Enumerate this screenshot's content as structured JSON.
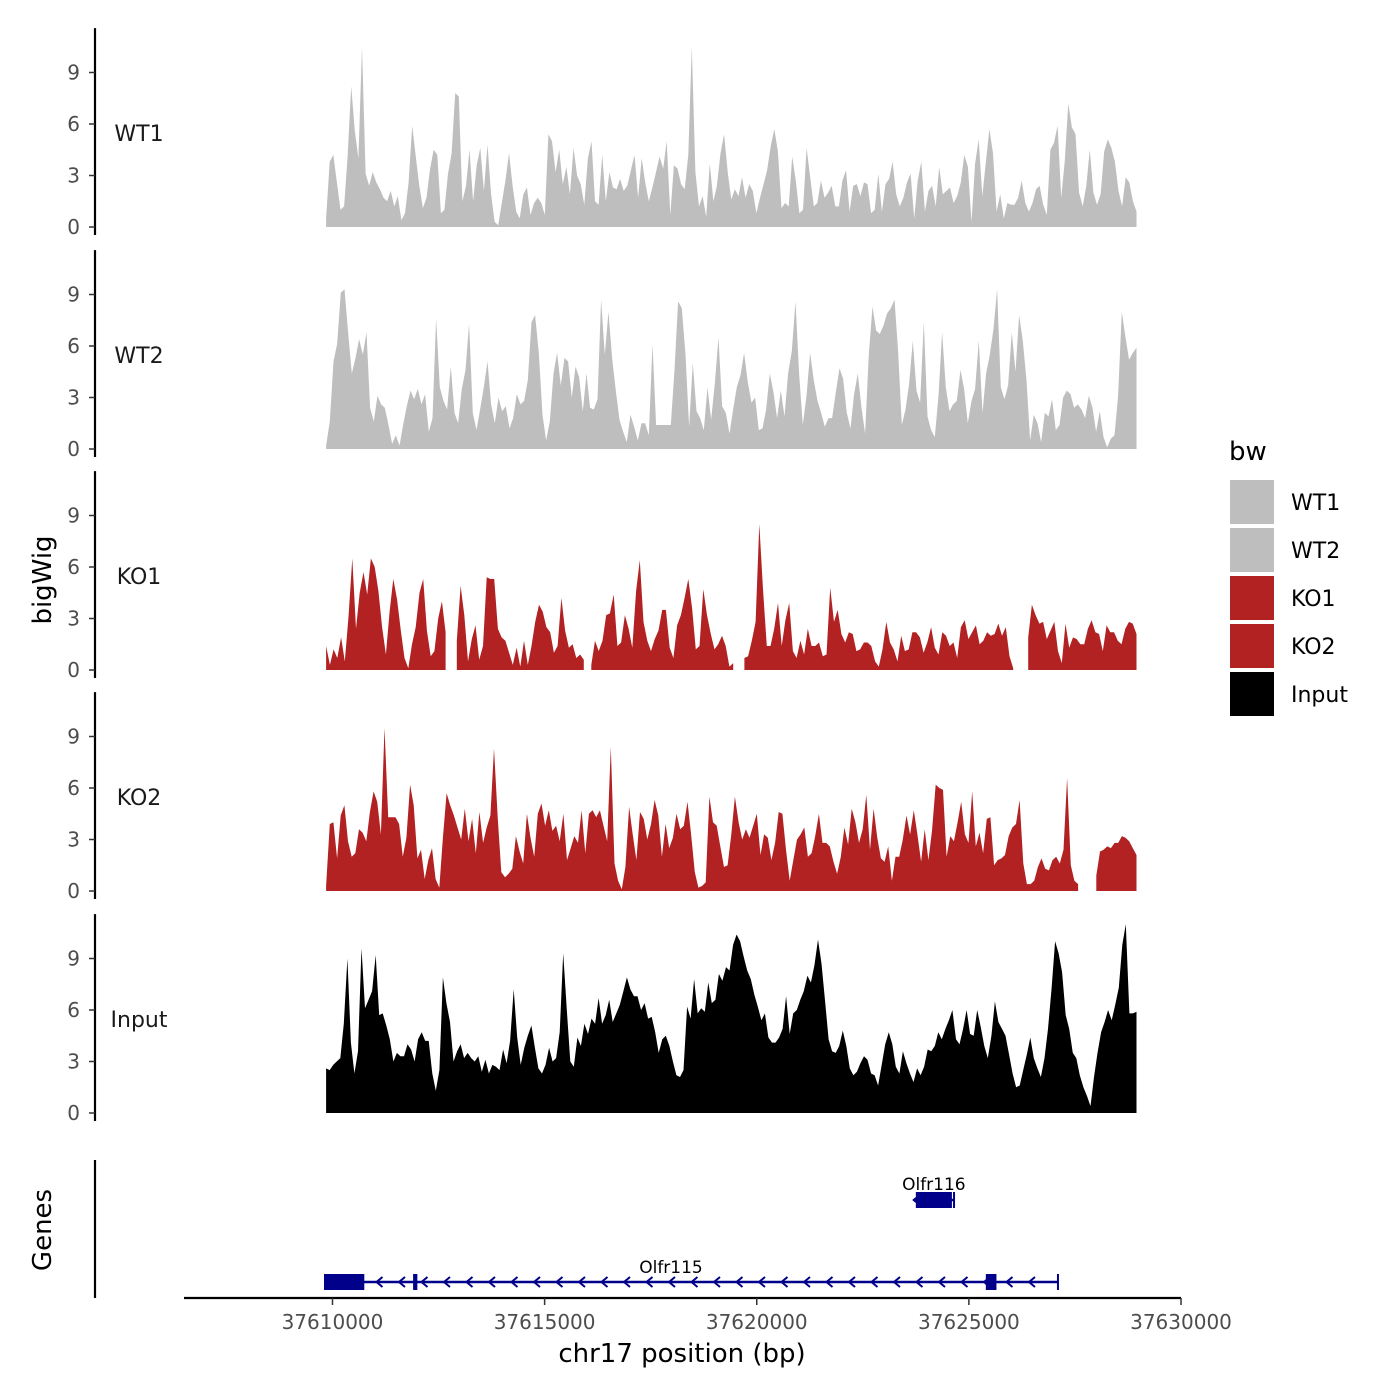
{
  "chart_data": {
    "type": "area",
    "title": "",
    "ylabel": "bigWig",
    "xlabel": "chr17 position (bp)",
    "xlim": [
      37606500,
      37630000
    ],
    "ylim": [
      0,
      11
    ],
    "y_ticks": [
      "0",
      "3",
      "6",
      "9"
    ],
    "x_ticks": [
      "37610000",
      "37615000",
      "37620000",
      "37625000",
      "37630000"
    ],
    "legend": {
      "title": "bw",
      "position": "right",
      "entries": [
        {
          "label": "WT1",
          "color": "#bebebe"
        },
        {
          "label": "WT2",
          "color": "#bebebe"
        },
        {
          "label": "KO1",
          "color": "#b22222"
        },
        {
          "label": "KO2",
          "color": "#b22222"
        },
        {
          "label": "Input",
          "color": "#000000"
        }
      ]
    },
    "series": [
      {
        "name": "WT1",
        "color": "#bebebe",
        "x_start": 37609850,
        "x_end": 37628950,
        "values": [
          0.5,
          3.8,
          4.2,
          2.6,
          1.0,
          1.2,
          4.1,
          8.2,
          5.6,
          4.0,
          10.5,
          3.1,
          2.4,
          3.2,
          2.6,
          2.2,
          1.7,
          1.5,
          2.1,
          1.2,
          1.8,
          0.4,
          0.8,
          2.6,
          5.9,
          4.1,
          2.4,
          1.1,
          1.7,
          3.4,
          4.5,
          4.2,
          0.8,
          1.0,
          3.1,
          4.3,
          7.8,
          7.6,
          1.5,
          2.4,
          4.5,
          1.5,
          3.6,
          4.6,
          2.1,
          4.8,
          1.9,
          0.3,
          0.1,
          1.4,
          2.7,
          4.3,
          2.4,
          0.9,
          0.5,
          1.9,
          2.3,
          0.7,
          1.4,
          1.7,
          1.4,
          0.7,
          5.4,
          5.0,
          3.2,
          4.5,
          2.5,
          3.5,
          1.9,
          4.6,
          3.0,
          2.5,
          1.3,
          4.0,
          5.0,
          1.5,
          1.3,
          4.2,
          1.5,
          3.2,
          2.3,
          2.2,
          2.8,
          2.1,
          2.4,
          3.3,
          4.2,
          1.7,
          4.0,
          2.6,
          1.5,
          2.3,
          3.2,
          4.1,
          3.4,
          5.0,
          0.7,
          3.6,
          3.4,
          2.5,
          2.2,
          4.2,
          10.5,
          3.2,
          1.2,
          1.8,
          0.6,
          3.7,
          1.5,
          2.4,
          4.3,
          5.4,
          3.2,
          1.6,
          2.2,
          1.8,
          2.9,
          1.7,
          2.5,
          2.1,
          0.8,
          1.7,
          2.5,
          3.3,
          4.7,
          5.7,
          4.4,
          1.1,
          1.4,
          1.2,
          4.1,
          2.7,
          0.8,
          1.0,
          4.6,
          2.9,
          1.2,
          1.4,
          2.7,
          1.7,
          2.0,
          2.4,
          1.2,
          1.2,
          2.7,
          3.3,
          0.9,
          2.4,
          2.5,
          1.8,
          2.6,
          2.5,
          0.8,
          1.0,
          3.1,
          0.9,
          2.5,
          2.8,
          3.8,
          1.9,
          1.2,
          1.7,
          2.6,
          3.1,
          0.5,
          2.7,
          3.8,
          0.9,
          2.1,
          2.4,
          1.2,
          3.5,
          1.9,
          2.1,
          2.3,
          1.4,
          1.8,
          2.6,
          4.2,
          3.5,
          0.3,
          3.7,
          5.1,
          1.8,
          3.8,
          5.7,
          4.3,
          0.9,
          1.9,
          0.5,
          1.4,
          1.3,
          1.3,
          1.7,
          2.7,
          1.4,
          0.9,
          1.4,
          2.2,
          2.4,
          1.3,
          0.7,
          4.5,
          4.9,
          5.9,
          1.7,
          3.8,
          7.2,
          5.8,
          5.4,
          2.0,
          1.2,
          2.4,
          4.5,
          2.0,
          1.3,
          1.9,
          4.4,
          5.1,
          4.6,
          3.8,
          2.1,
          1.2,
          2.9,
          2.6,
          1.5,
          0.9
        ]
      },
      {
        "name": "WT2",
        "color": "#bebebe",
        "x_start": 37609850,
        "x_end": 37628950,
        "values": [
          0.2,
          1.6,
          5.1,
          6.1,
          9.1,
          9.3,
          6.8,
          4.4,
          5.3,
          6.4,
          5.5,
          6.8,
          2.4,
          1.6,
          3.1,
          2.6,
          2.4,
          1.4,
          0.3,
          0.8,
          0.2,
          1.4,
          2.5,
          3.4,
          2.9,
          3.5,
          2.6,
          3.2,
          1.0,
          1.8,
          7.6,
          3.6,
          2.8,
          2.3,
          4.8,
          2.1,
          1.5,
          3.5,
          4.6,
          7.3,
          2.1,
          1.1,
          2.3,
          3.6,
          5.1,
          2.6,
          1.5,
          3.0,
          2.2,
          2.5,
          1.2,
          1.8,
          3.2,
          2.6,
          2.8,
          4.0,
          7.4,
          7.8,
          5.6,
          2.0,
          0.5,
          1.6,
          4.4,
          5.6,
          3.7,
          5.3,
          5.1,
          3.0,
          4.8,
          4.2,
          2.2,
          4.4,
          2.4,
          2.3,
          2.9,
          8.7,
          5.5,
          8.0,
          5.3,
          3.4,
          1.7,
          1.0,
          0.4,
          2.0,
          1.3,
          0.5,
          1.5,
          1.5,
          0.8,
          6.1,
          1.4,
          1.4,
          1.4,
          1.4,
          1.4,
          4.6,
          8.6,
          8.2,
          5.5,
          1.3,
          5.0,
          2.2,
          1.8,
          1.1,
          3.6,
          1.7,
          3.8,
          6.5,
          2.5,
          2.1,
          0.9,
          2.3,
          3.6,
          4.3,
          5.6,
          3.9,
          2.7,
          3.0,
          1.1,
          1.2,
          2.3,
          4.4,
          3.3,
          1.8,
          3.4,
          1.9,
          4.4,
          5.7,
          8.6,
          4.4,
          1.4,
          3.1,
          5.6,
          4.0,
          2.8,
          2.1,
          1.3,
          1.8,
          1.8,
          3.3,
          4.7,
          4.1,
          2.1,
          1.2,
          3.2,
          4.4,
          2.4,
          0.9,
          5.5,
          8.3,
          6.9,
          6.7,
          7.2,
          7.9,
          8.2,
          8.7,
          5.7,
          1.4,
          2.3,
          3.8,
          6.3,
          3.4,
          2.7,
          7.4,
          1.9,
          1.1,
          0.7,
          3.1,
          6.8,
          3.6,
          2.2,
          2.6,
          2.8,
          4.6,
          3.5,
          1.5,
          2.8,
          3.5,
          6.3,
          2.1,
          4.4,
          5.5,
          7.0,
          9.3,
          3.6,
          2.9,
          3.7,
          6.8,
          4.5,
          7.8,
          6.3,
          4.0,
          0.5,
          2.0,
          1.5,
          0.4,
          2.1,
          1.9,
          2.9,
          1.1,
          1.4,
          3.0,
          3.4,
          3.2,
          2.4,
          2.6,
          2.3,
          1.8,
          3.1,
          2.4,
          1.0,
          2.2,
          0.7,
          0.1,
          0.6,
          0.8,
          3.1,
          8.0,
          6.5,
          5.2,
          5.6,
          5.9
        ]
      },
      {
        "name": "KO1",
        "color": "#b22222",
        "x_start": 37609850,
        "x_end": 37628950,
        "values": [
          1.4,
          0.3,
          1.2,
          0.7,
          1.9,
          0.5,
          3.1,
          6.5,
          2.4,
          4.5,
          5.7,
          4.4,
          6.5,
          6.0,
          4.6,
          2.5,
          0.9,
          3.4,
          5.3,
          4.1,
          2.3,
          0.7,
          0.1,
          1.5,
          2.5,
          4.5,
          5.3,
          2.3,
          0.8,
          1.1,
          3.0,
          4.0,
          2.2,
          null,
          null,
          1.7,
          4.9,
          3.2,
          0.5,
          1.8,
          2.6,
          0.6,
          1.4,
          5.4,
          5.3,
          5.3,
          2.4,
          1.9,
          1.7,
          1.0,
          0.3,
          1.3,
          0.2,
          1.7,
          0.3,
          1.4,
          2.8,
          3.8,
          3.4,
          2.5,
          2.2,
          1.0,
          1.4,
          4.2,
          2.3,
          1.3,
          1.5,
          0.7,
          0.9,
          0.6,
          null,
          0.3,
          1.7,
          1.1,
          1.7,
          3.2,
          3.3,
          4.4,
          1.4,
          1.6,
          3.2,
          2.4,
          1.3,
          4.6,
          6.4,
          2.8,
          1.7,
          1.1,
          1.8,
          2.3,
          3.5,
          3.5,
          1.3,
          0.7,
          2.6,
          3.2,
          4.2,
          5.3,
          3.6,
          1.2,
          1.4,
          4.7,
          3.2,
          2.1,
          1.2,
          1.5,
          2.0,
          1.4,
          0.2,
          0.4,
          null,
          null,
          0.7,
          0.8,
          1.7,
          2.8,
          8.5,
          4.7,
          1.4,
          1.4,
          2.4,
          3.9,
          1.4,
          2.9,
          3.9,
          1.1,
          0.7,
          1.7,
          0.9,
          2.4,
          1.4,
          1.4,
          1.6,
          0.8,
          0.9,
          4.8,
          2.8,
          3.5,
          2.1,
          1.6,
          2.2,
          2.1,
          1.1,
          1.2,
          1.6,
          1.6,
          1.4,
          0.5,
          0.2,
          1.2,
          2.8,
          1.6,
          1.2,
          0.5,
          2.0,
          1.1,
          1.2,
          2.2,
          2.2,
          1.9,
          1.0,
          1.6,
          2.5,
          1.3,
          0.9,
          2.2,
          2.0,
          1.4,
          1.6,
          0.7,
          2.5,
          2.9,
          1.8,
          2.2,
          2.6,
          1.5,
          1.7,
          2.2,
          2.0,
          2.1,
          2.7,
          2.0,
          2.5,
          0.8,
          0.1,
          null,
          null,
          null,
          1.9,
          3.8,
          3.2,
          2.7,
          2.8,
          1.8,
          2.3,
          2.8,
          1.1,
          0.4,
          2.7,
          1.3,
          1.9,
          1.8,
          1.5,
          1.5,
          2.4,
          2.9,
          2.2,
          2.1,
          1.1,
          2.6,
          2.2,
          2.2,
          1.7,
          1.5,
          2.4,
          2.8,
          2.7,
          2.1
        ]
      },
      {
        "name": "KO2",
        "color": "#b22222",
        "x_start": 37609850,
        "x_end": 37628950,
        "values": [
          0.3,
          3.9,
          4.0,
          1.9,
          4.4,
          5.0,
          2.9,
          2.0,
          2.2,
          3.6,
          3.4,
          2.9,
          4.6,
          5.8,
          5.2,
          3.3,
          9.5,
          4.3,
          4.3,
          4.3,
          3.9,
          2.0,
          3.1,
          6.2,
          5.0,
          1.9,
          2.4,
          0.7,
          1.8,
          2.5,
          0.7,
          0.2,
          3.1,
          5.7,
          5.0,
          4.4,
          3.7,
          3.0,
          4.8,
          2.9,
          4.2,
          2.2,
          4.6,
          2.8,
          3.7,
          4.4,
          8.3,
          4.3,
          1.1,
          0.8,
          1.0,
          1.3,
          3.2,
          2.3,
          1.6,
          4.5,
          3.1,
          2.0,
          4.5,
          5.1,
          3.8,
          4.7,
          3.5,
          3.8,
          2.9,
          4.5,
          1.8,
          2.5,
          3.2,
          2.8,
          4.7,
          2.2,
          4.5,
          4.7,
          4.3,
          4.7,
          3.8,
          2.9,
          8.4,
          1.6,
          0.6,
          0.1,
          1.4,
          4.9,
          3.3,
          1.8,
          4.6,
          4.2,
          3.0,
          3.9,
          5.3,
          4.4,
          2.0,
          3.9,
          2.5,
          3.1,
          4.5,
          3.6,
          3.8,
          5.2,
          3.3,
          1.1,
          0.2,
          0.3,
          0.5,
          5.5,
          4.0,
          3.8,
          2.6,
          1.4,
          1.5,
          3.3,
          5.5,
          4.0,
          3.0,
          3.6,
          3.1,
          3.8,
          4.5,
          2.1,
          3.3,
          3.1,
          1.8,
          2.8,
          4.6,
          4.5,
          2.4,
          0.6,
          1.8,
          3.0,
          3.3,
          3.7,
          2.0,
          2.2,
          3.2,
          4.5,
          2.8,
          2.8,
          2.6,
          1.7,
          1.0,
          2.0,
          3.7,
          2.7,
          4.8,
          4.0,
          2.8,
          3.6,
          5.6,
          2.4,
          4.8,
          3.1,
          1.9,
          1.7,
          2.6,
          0.6,
          2.0,
          2.0,
          3.0,
          4.4,
          3.3,
          4.7,
          3.3,
          1.7,
          3.6,
          1.8,
          3.5,
          6.2,
          6.0,
          5.9,
          2.0,
          3.2,
          2.9,
          4.0,
          5.2,
          3.3,
          2.8,
          5.8,
          2.6,
          3.4,
          2.2,
          4.2,
          4.3,
          1.5,
          1.8,
          1.9,
          2.1,
          3.2,
          3.7,
          3.9,
          5.3,
          1.6,
          0.4,
          0.4,
          0.6,
          1.4,
          1.9,
          1.3,
          1.2,
          1.8,
          2.0,
          1.6,
          2.4,
          6.6,
          1.5,
          0.6,
          0.4,
          null,
          null,
          null,
          null,
          0.9,
          2.3,
          2.4,
          2.6,
          2.5,
          2.8,
          2.8,
          3.2,
          3.1,
          2.9,
          2.5,
          2.1
        ]
      },
      {
        "name": "Input",
        "color": "#000000",
        "x_start": 37609850,
        "x_end": 37628950,
        "values": [
          2.6,
          2.5,
          2.8,
          3.0,
          3.2,
          5.2,
          9.0,
          4.1,
          2.3,
          3.6,
          9.6,
          6.1,
          6.6,
          7.1,
          9.2,
          5.7,
          5.8,
          5.1,
          4.3,
          3.0,
          3.5,
          3.3,
          3.3,
          4.0,
          3.7,
          3.0,
          4.3,
          4.7,
          4.2,
          4.2,
          2.3,
          1.3,
          2.5,
          7.9,
          6.4,
          5.3,
          3.0,
          3.6,
          4.0,
          3.2,
          3.5,
          3.2,
          3.0,
          3.3,
          2.4,
          3.1,
          2.3,
          2.8,
          2.7,
          2.5,
          3.7,
          2.9,
          4.2,
          7.2,
          4.4,
          2.8,
          3.8,
          4.5,
          5.1,
          3.8,
          2.6,
          2.3,
          2.8,
          3.8,
          3.0,
          3.2,
          4.7,
          9.3,
          6.1,
          3.0,
          2.7,
          4.4,
          3.9,
          5.2,
          4.6,
          5.5,
          5.2,
          6.7,
          5.2,
          5.7,
          6.6,
          5.3,
          5.8,
          6.3,
          7.1,
          7.9,
          7.2,
          6.8,
          6.8,
          6.0,
          6.4,
          5.5,
          5.6,
          4.7,
          3.5,
          4.3,
          4.5,
          3.9,
          3.0,
          2.2,
          2.1,
          2.5,
          6.2,
          5.5,
          7.8,
          5.8,
          6.1,
          5.9,
          7.6,
          6.4,
          6.6,
          8.1,
          7.7,
          8.5,
          8.3,
          9.8,
          10.4,
          10.0,
          9.1,
          8.3,
          7.8,
          6.9,
          6.2,
          5.4,
          5.8,
          4.4,
          4.1,
          4.1,
          4.4,
          4.9,
          6.8,
          4.6,
          5.8,
          6.0,
          6.6,
          7.1,
          8.0,
          7.6,
          8.6,
          10.1,
          8.7,
          6.5,
          4.3,
          3.6,
          3.5,
          3.9,
          4.8,
          3.9,
          2.6,
          2.2,
          2.4,
          2.9,
          3.3,
          3.1,
          2.3,
          2.2,
          1.6,
          2.8,
          4.0,
          4.7,
          4.0,
          2.7,
          2.3,
          3.6,
          2.9,
          2.3,
          1.8,
          2.6,
          2.2,
          2.7,
          3.7,
          3.6,
          3.9,
          4.7,
          4.3,
          4.9,
          5.4,
          6.0,
          4.3,
          4.0,
          4.9,
          6.0,
          4.6,
          4.5,
          6.0,
          5.0,
          3.9,
          3.2,
          4.5,
          6.5,
          5.3,
          4.9,
          4.5,
          3.4,
          2.3,
          1.5,
          1.6,
          2.5,
          3.4,
          4.4,
          3.2,
          2.6,
          2.1,
          3.2,
          4.9,
          7.2,
          10.0,
          9.3,
          8.2,
          5.7,
          4.9,
          3.5,
          3.2,
          2.2,
          1.5,
          1.0,
          0.4,
          2.1,
          3.5,
          4.7,
          5.3,
          6.0,
          5.4,
          6.3,
          7.3,
          9.8,
          11.0,
          5.8,
          5.8,
          5.9
        ]
      }
    ],
    "genes": {
      "title": "Genes",
      "color": "#00008b",
      "items": [
        {
          "name": "Olfr116",
          "strand": "-",
          "start": 37623700,
          "end": 37624650,
          "exons": [
            [
              37623750,
              37624600
            ]
          ]
        },
        {
          "name": "Olfr115",
          "strand": "-",
          "start": 37609800,
          "end": 37627100,
          "exons": [
            [
              37609800,
              37610750
            ],
            [
              37611900,
              37612000
            ],
            [
              37625400,
              37625650
            ]
          ]
        }
      ]
    }
  }
}
